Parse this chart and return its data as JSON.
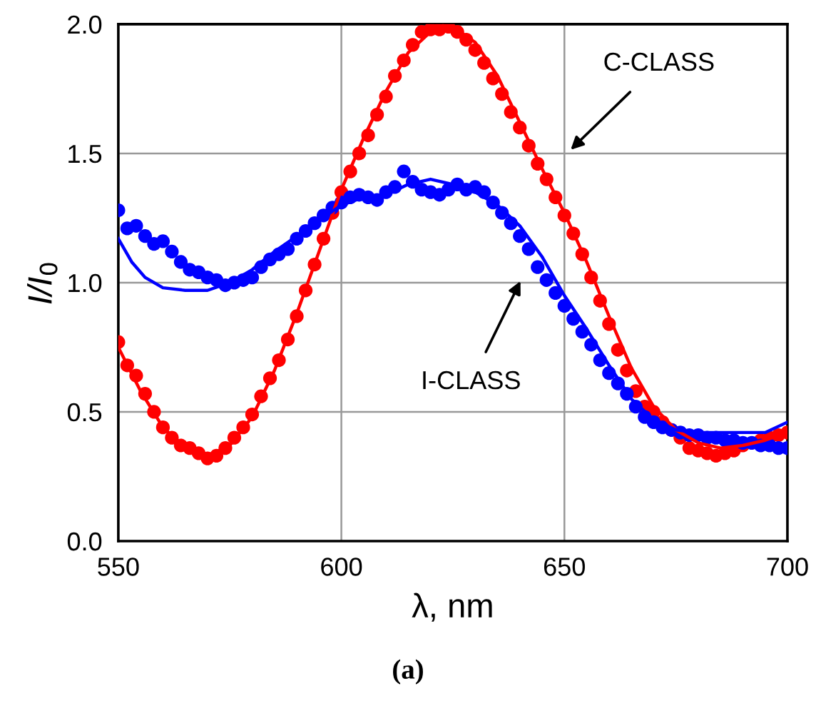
{
  "chart_data": {
    "type": "scatter",
    "xlabel": "λ, nm",
    "ylabel": "I/I$_{0}$",
    "xlim": [
      550,
      700
    ],
    "xticks": [
      550,
      600,
      650,
      700
    ],
    "ylim": [
      0,
      2.0
    ],
    "yticks": [
      {
        "value": 0,
        "label": "0.0"
      },
      0.5,
      {
        "value": 1,
        "label": "1.0"
      },
      1.5,
      {
        "value": 2,
        "label": "2.0"
      }
    ],
    "grid": true,
    "marker": "circle",
    "series": [
      {
        "color": "#ff0000",
        "x": [
          550,
          552,
          554,
          556,
          558,
          560,
          562,
          564,
          566,
          568,
          570,
          572,
          574,
          576,
          578,
          580,
          582,
          584,
          586,
          588,
          590,
          592,
          594,
          596,
          598,
          600,
          602,
          604,
          606,
          608,
          610,
          612,
          614,
          616,
          618,
          620,
          622,
          624,
          626,
          628,
          630,
          632,
          634,
          636,
          638,
          640,
          642,
          644,
          646,
          648,
          650,
          652,
          654,
          656,
          658,
          660,
          662,
          664,
          666,
          668,
          670,
          672,
          674,
          676,
          678,
          680,
          682,
          684,
          686,
          688,
          690,
          692,
          694,
          696,
          698,
          700
        ],
        "values": [
          0.77,
          0.68,
          0.64,
          0.57,
          0.5,
          0.44,
          0.4,
          0.37,
          0.36,
          0.34,
          0.32,
          0.33,
          0.36,
          0.4,
          0.44,
          0.49,
          0.56,
          0.63,
          0.7,
          0.78,
          0.87,
          0.97,
          1.07,
          1.17,
          1.27,
          1.35,
          1.43,
          1.5,
          1.57,
          1.65,
          1.72,
          1.8,
          1.86,
          1.92,
          1.97,
          1.98,
          1.98,
          1.99,
          1.97,
          1.94,
          1.9,
          1.85,
          1.79,
          1.73,
          1.66,
          1.6,
          1.53,
          1.46,
          1.4,
          1.33,
          1.26,
          1.19,
          1.11,
          1.02,
          0.93,
          0.84,
          0.74,
          0.66,
          0.58,
          0.52,
          0.5,
          0.46,
          0.43,
          0.4,
          0.36,
          0.35,
          0.34,
          0.33,
          0.34,
          0.35,
          0.37,
          null,
          0.39,
          0.4,
          0.41,
          0.42
        ]
      },
      {
        "type": "line",
        "color": "#ff0000",
        "marker": "none",
        "x": [
          550,
          555,
          560,
          565,
          570,
          575,
          580,
          585,
          590,
          595,
          600,
          605,
          610,
          615,
          620,
          625,
          630,
          635,
          640,
          645,
          650,
          655,
          660,
          665,
          670,
          675,
          680,
          685,
          690,
          695,
          700
        ],
        "values": [
          0.75,
          0.58,
          0.44,
          0.36,
          0.33,
          0.37,
          0.48,
          0.66,
          0.88,
          1.12,
          1.36,
          1.56,
          1.74,
          1.89,
          1.97,
          1.99,
          1.93,
          1.8,
          1.62,
          1.44,
          1.27,
          1.08,
          0.87,
          0.67,
          0.52,
          0.43,
          0.38,
          0.36,
          0.37,
          0.39,
          0.42
        ]
      },
      {
        "color": "#0000ff",
        "x": [
          550,
          552,
          554,
          556,
          558,
          560,
          562,
          564,
          566,
          568,
          570,
          572,
          574,
          576,
          578,
          580,
          582,
          584,
          586,
          588,
          590,
          592,
          594,
          596,
          598,
          600,
          602,
          604,
          606,
          608,
          610,
          612,
          614,
          616,
          618,
          620,
          622,
          624,
          626,
          628,
          630,
          632,
          634,
          636,
          638,
          640,
          642,
          644,
          646,
          648,
          650,
          652,
          654,
          656,
          658,
          660,
          662,
          664,
          666,
          668,
          670,
          672,
          674,
          676,
          678,
          680,
          682,
          684,
          686,
          688,
          690,
          692,
          694,
          696,
          698,
          700
        ],
        "values": [
          1.28,
          1.21,
          1.22,
          1.18,
          1.15,
          1.16,
          1.12,
          1.08,
          1.05,
          1.04,
          1.02,
          1.01,
          0.99,
          1.0,
          1.01,
          1.02,
          1.06,
          1.09,
          1.11,
          1.13,
          1.17,
          1.2,
          1.23,
          1.26,
          1.29,
          1.31,
          1.33,
          1.34,
          1.33,
          1.32,
          1.35,
          1.37,
          1.43,
          1.39,
          1.36,
          1.35,
          1.34,
          1.36,
          1.38,
          1.36,
          1.37,
          1.35,
          1.31,
          1.27,
          1.23,
          1.18,
          1.13,
          1.06,
          1.01,
          0.96,
          0.91,
          0.86,
          0.81,
          0.76,
          0.7,
          0.65,
          0.61,
          0.57,
          0.52,
          0.48,
          0.46,
          0.44,
          0.43,
          0.42,
          0.41,
          0.41,
          0.4,
          0.4,
          0.39,
          0.39,
          0.38,
          0.38,
          0.37,
          0.37,
          0.36,
          0.36
        ]
      },
      {
        "type": "line",
        "color": "#0000ff",
        "marker": "none",
        "x": [
          550,
          553,
          556,
          560,
          565,
          570,
          575,
          580,
          585,
          590,
          595,
          600,
          605,
          610,
          615,
          620,
          625,
          630,
          635,
          640,
          645,
          650,
          655,
          660,
          665,
          670,
          675,
          680,
          685,
          690,
          695,
          700
        ],
        "values": [
          1.17,
          1.08,
          1.02,
          0.98,
          0.97,
          0.97,
          1.0,
          1.05,
          1.12,
          1.18,
          1.24,
          1.3,
          1.33,
          1.34,
          1.38,
          1.4,
          1.38,
          1.35,
          1.3,
          1.22,
          1.1,
          0.95,
          0.82,
          0.68,
          0.55,
          0.47,
          0.43,
          0.42,
          0.42,
          0.42,
          0.42,
          0.46
        ]
      }
    ],
    "annotations": [
      "C-CLASS",
      "I-CLASS",
      "(a)"
    ]
  }
}
